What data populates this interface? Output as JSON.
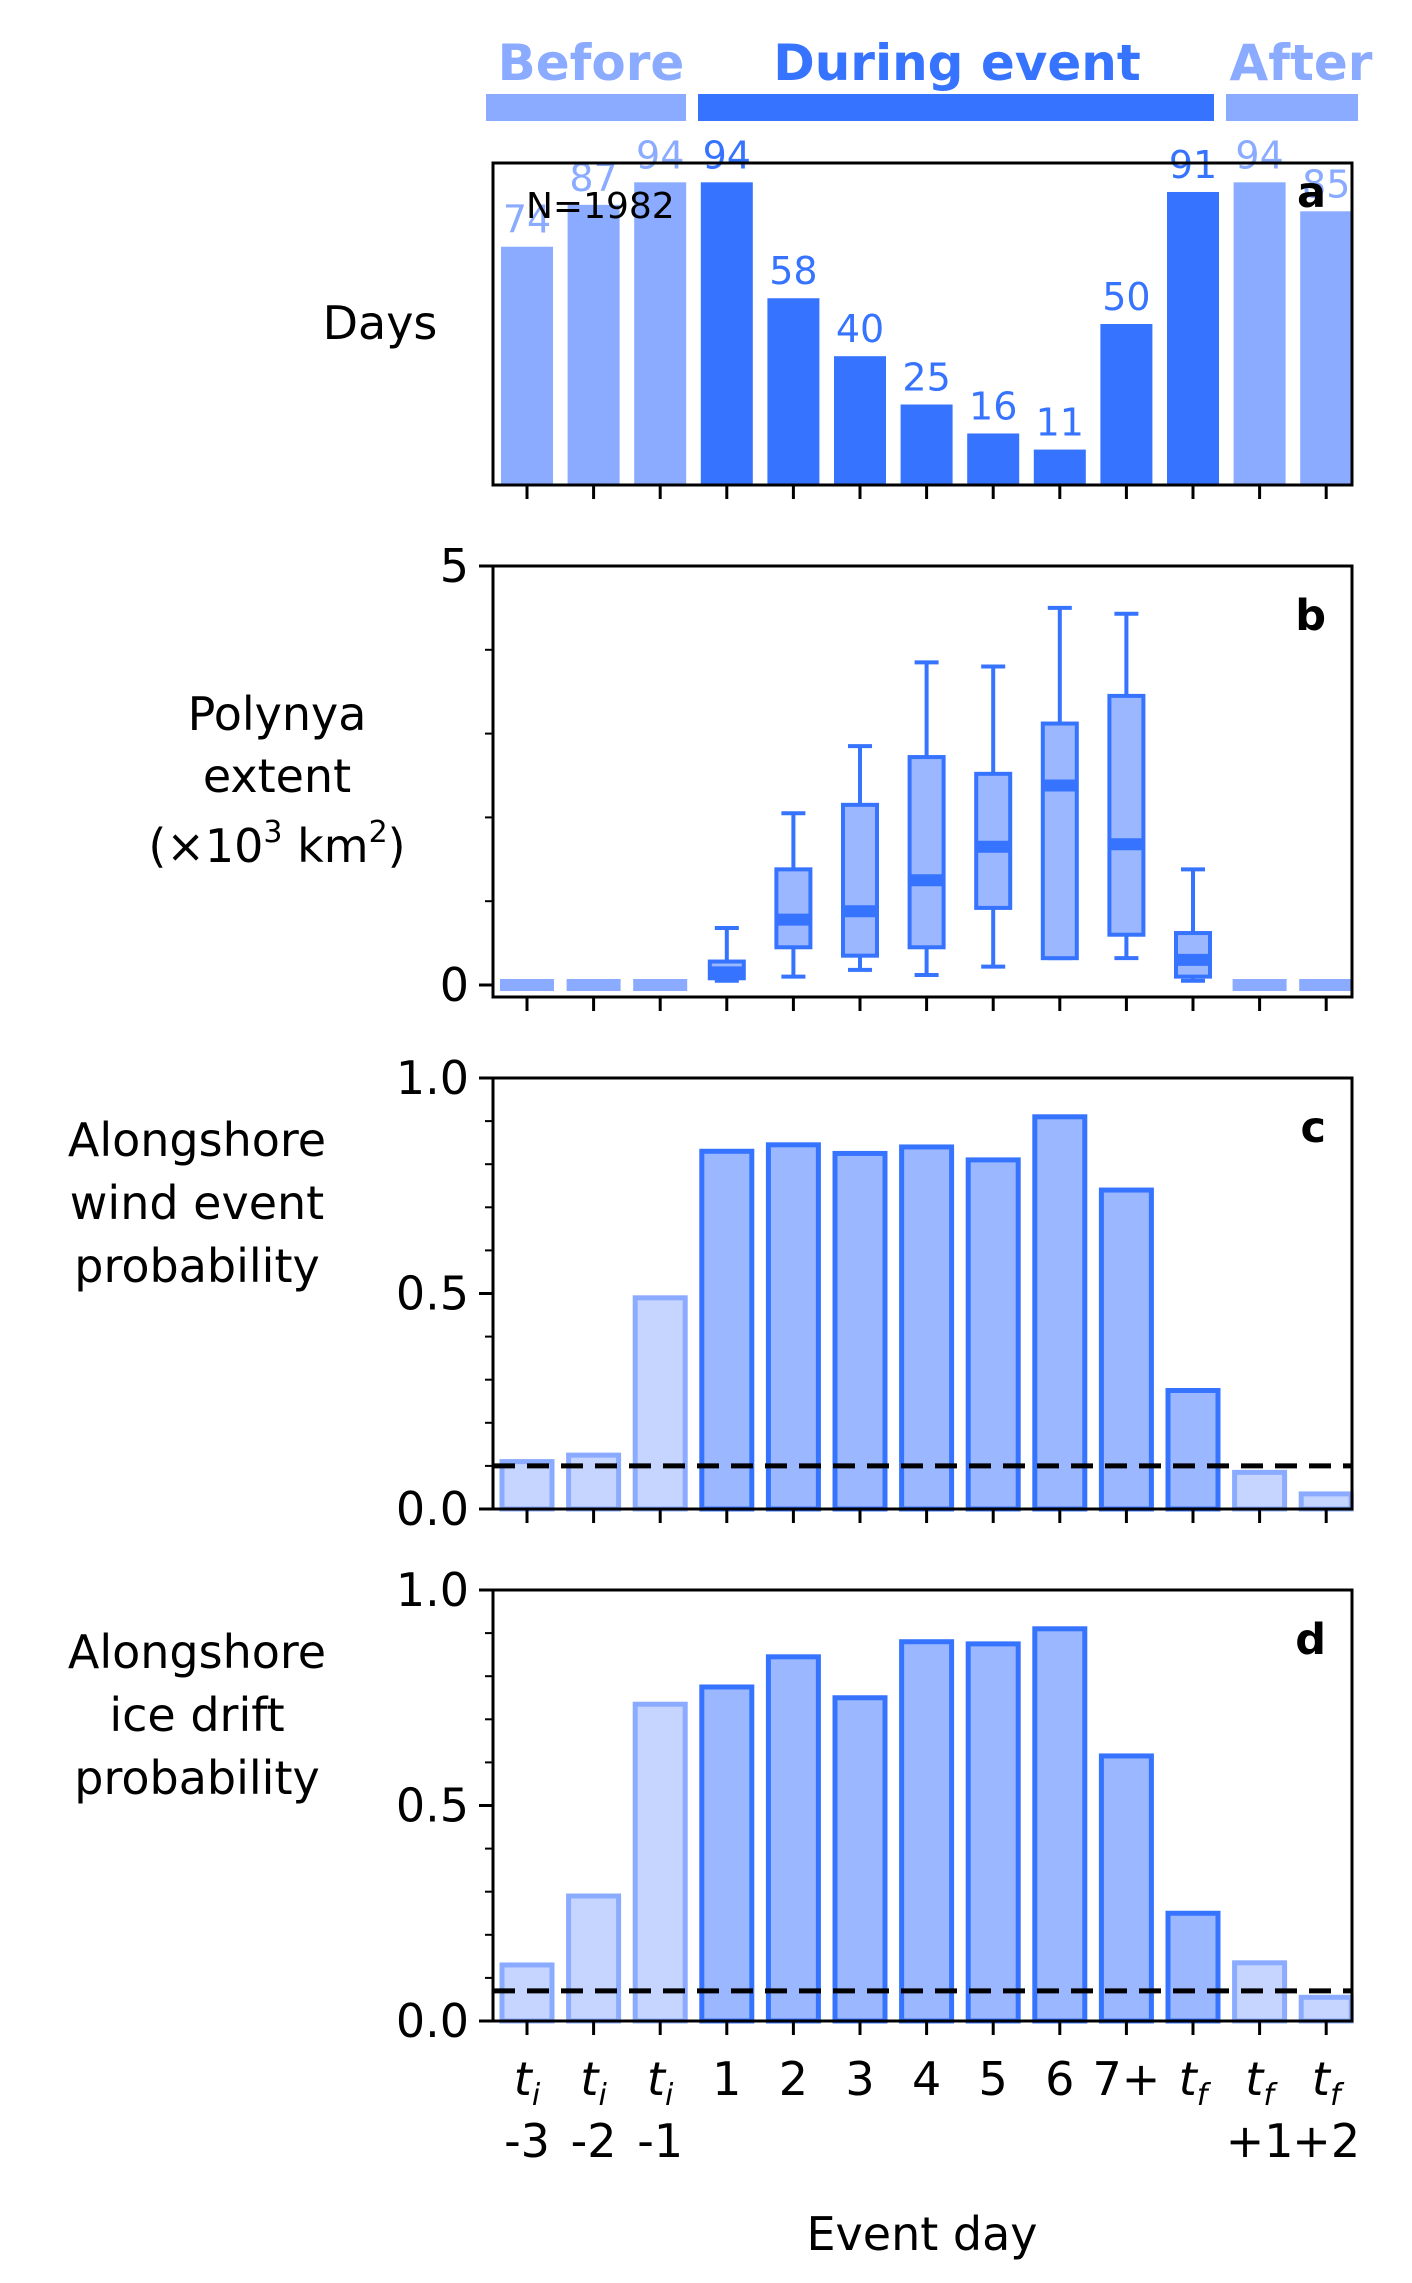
{
  "colors": {
    "light_blue": "#8aabff",
    "blue": "#3673ff",
    "panel_fill": "#9ab7ff",
    "faint_fill": "#c6d5ff",
    "ink": "#000000"
  },
  "header": {
    "before_label": "Before",
    "during_label": "During event",
    "after_label": "After"
  },
  "chart_data": [
    {
      "id": "a",
      "type": "bar",
      "panel_label": "a",
      "ylabel": "Days",
      "annotation": "N=1982",
      "categories": [
        "t_i -3",
        "t_i -2",
        "t_i -1",
        "1",
        "2",
        "3",
        "4",
        "5",
        "6",
        "7+",
        "t_f",
        "t_f +1",
        "t_f +2"
      ],
      "values": [
        74,
        87,
        94,
        94,
        58,
        40,
        25,
        16,
        11,
        50,
        91,
        94,
        85
      ],
      "value_labels": [
        "74",
        "87",
        "94",
        "94",
        "58",
        "40",
        "25",
        "16",
        "11",
        "50",
        "91",
        "94",
        "85"
      ],
      "phase": [
        "before",
        "before",
        "before",
        "during",
        "during",
        "during",
        "during",
        "during",
        "during",
        "during",
        "during",
        "after",
        "after"
      ],
      "ylim": [
        0,
        100
      ]
    },
    {
      "id": "b",
      "type": "box",
      "panel_label": "b",
      "ylabel_lines": [
        "Polynya",
        "extent"
      ],
      "ylabel_unit": {
        "open": "(×10",
        "sup1": "3",
        "mid": " km",
        "sup2": "2",
        "close": ")"
      },
      "yticks": [
        0,
        5
      ],
      "ytick_labels": [
        "0",
        "5"
      ],
      "ylim": [
        -0.1,
        5
      ],
      "boxes": [
        {
          "whislo": 0,
          "q1": 0,
          "median": 0,
          "q3": 0,
          "whishi": 0
        },
        {
          "whislo": 0,
          "q1": 0,
          "median": 0,
          "q3": 0,
          "whishi": 0
        },
        {
          "whislo": 0,
          "q1": 0,
          "median": 0,
          "q3": 0,
          "whishi": 0
        },
        {
          "whislo": 0.05,
          "q1": 0.08,
          "median": 0.15,
          "q3": 0.28,
          "whishi": 0.68
        },
        {
          "whislo": 0.1,
          "q1": 0.45,
          "median": 0.78,
          "q3": 1.38,
          "whishi": 2.05
        },
        {
          "whislo": 0.18,
          "q1": 0.35,
          "median": 0.88,
          "q3": 2.15,
          "whishi": 2.85
        },
        {
          "whislo": 0.12,
          "q1": 0.45,
          "median": 1.25,
          "q3": 2.72,
          "whishi": 3.85
        },
        {
          "whislo": 0.22,
          "q1": 0.92,
          "median": 1.65,
          "q3": 2.52,
          "whishi": 3.8
        },
        {
          "whislo": 0.32,
          "q1": 0.32,
          "median": 2.38,
          "q3": 3.12,
          "whishi": 4.5
        },
        {
          "whislo": 0.32,
          "q1": 0.6,
          "median": 1.68,
          "q3": 3.45,
          "whishi": 4.43
        },
        {
          "whislo": 0.05,
          "q1": 0.1,
          "median": 0.3,
          "q3": 0.62,
          "whishi": 1.38
        },
        {
          "whislo": 0,
          "q1": 0,
          "median": 0,
          "q3": 0,
          "whishi": 0
        },
        {
          "whislo": 0,
          "q1": 0,
          "median": 0,
          "q3": 0,
          "whishi": 0
        }
      ]
    },
    {
      "id": "c",
      "type": "bar",
      "panel_label": "c",
      "ylabel_lines": [
        "Alongshore",
        "wind event",
        "probability"
      ],
      "yticks": [
        0,
        0.5,
        1
      ],
      "ytick_labels": [
        "0.0",
        "0.5",
        "1.0"
      ],
      "ylim": [
        0,
        1
      ],
      "values": [
        0.11,
        0.125,
        0.49,
        0.83,
        0.845,
        0.825,
        0.84,
        0.81,
        0.91,
        0.74,
        0.275,
        0.085,
        0.035
      ],
      "reference_line": 0.1
    },
    {
      "id": "d",
      "type": "bar",
      "panel_label": "d",
      "ylabel_lines": [
        "Alongshore",
        "ice drift",
        "probability"
      ],
      "yticks": [
        0,
        0.5,
        1
      ],
      "ytick_labels": [
        "0.0",
        "0.5",
        "1.0"
      ],
      "ylim": [
        0,
        1
      ],
      "values": [
        0.13,
        0.29,
        0.735,
        0.775,
        0.845,
        0.75,
        0.88,
        0.875,
        0.91,
        0.615,
        0.25,
        0.135,
        0.055
      ],
      "reference_line": 0.07
    }
  ],
  "xaxis": {
    "xlabel": "Event day",
    "ticks": [
      {
        "main": "t",
        "sub": "i",
        "second": "-3"
      },
      {
        "main": "t",
        "sub": "i",
        "second": "-2"
      },
      {
        "main": "t",
        "sub": "i",
        "second": "-1"
      },
      {
        "main": "1",
        "sub": "",
        "second": ""
      },
      {
        "main": "2",
        "sub": "",
        "second": ""
      },
      {
        "main": "3",
        "sub": "",
        "second": ""
      },
      {
        "main": "4",
        "sub": "",
        "second": ""
      },
      {
        "main": "5",
        "sub": "",
        "second": ""
      },
      {
        "main": "6",
        "sub": "",
        "second": ""
      },
      {
        "main": "7+",
        "sub": "",
        "second": ""
      },
      {
        "main": "t",
        "sub": "f",
        "second": ""
      },
      {
        "main": "t",
        "sub": "f",
        "second": "+1"
      },
      {
        "main": "t",
        "sub": "f",
        "second": "+2"
      }
    ]
  }
}
